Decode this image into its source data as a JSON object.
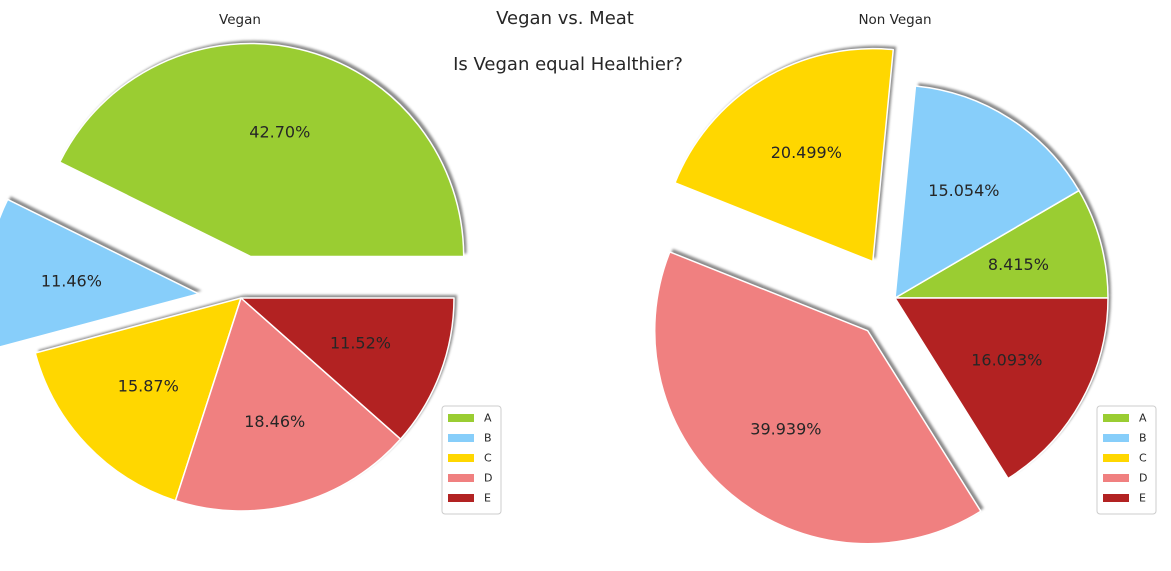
{
  "figure": {
    "title": "Vegan vs. Meat",
    "subtitle": "Is Vegan equal Healthier?"
  },
  "chart_data": [
    {
      "type": "pie",
      "title": "Vegan",
      "categories": [
        "A",
        "B",
        "C",
        "D",
        "E"
      ],
      "values": [
        42.7,
        11.46,
        15.87,
        18.46,
        11.52
      ],
      "value_labels": [
        "42.70%",
        "11.46%",
        "15.87%",
        "18.46%",
        "11.52%"
      ],
      "exploded": [
        "A",
        "B"
      ],
      "colors": [
        "#9ACD32",
        "#87CEFA",
        "#FFD700",
        "#F08080",
        "#B22222"
      ],
      "shadow": true,
      "legend": "lower-right"
    },
    {
      "type": "pie",
      "title": "Non Vegan",
      "categories": [
        "A",
        "B",
        "C",
        "D",
        "E"
      ],
      "values": [
        8.415,
        15.054,
        20.499,
        39.939,
        16.093
      ],
      "value_labels": [
        "8.415%",
        "15.054%",
        "20.499%",
        "39.939%",
        "16.093%"
      ],
      "exploded": [
        "C",
        "D"
      ],
      "colors": [
        "#9ACD32",
        "#87CEFA",
        "#FFD700",
        "#F08080",
        "#B22222"
      ],
      "shadow": true,
      "legend": "lower-right"
    }
  ]
}
